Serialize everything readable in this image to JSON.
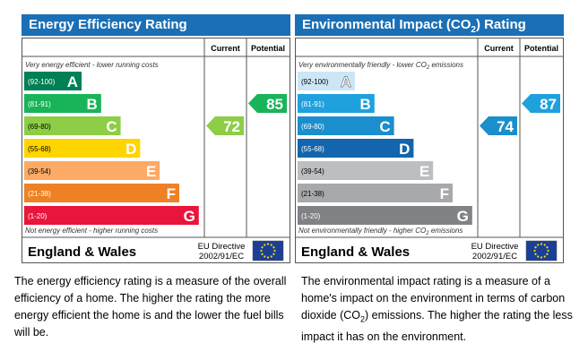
{
  "chart_data": [
    {
      "type": "bar",
      "title": "Energy Efficiency Rating",
      "header_color": "#1a6fb5",
      "columns": [
        "Current",
        "Potential"
      ],
      "top_note": "Very energy efficient - lower running costs",
      "bottom_note": "Not energy efficient - higher running costs",
      "bands": [
        {
          "range": "(92-100)",
          "letter": "A",
          "color": "#008054"
        },
        {
          "range": "(81-91)",
          "letter": "B",
          "color": "#19b459"
        },
        {
          "range": "(69-80)",
          "letter": "C",
          "color": "#8dce46"
        },
        {
          "range": "(55-68)",
          "letter": "D",
          "color": "#ffd500"
        },
        {
          "range": "(39-54)",
          "letter": "E",
          "color": "#fcaa65"
        },
        {
          "range": "(21-38)",
          "letter": "F",
          "color": "#ef8023"
        },
        {
          "range": "(1-20)",
          "letter": "G",
          "color": "#e9153b"
        }
      ],
      "current": {
        "value": 72,
        "band": "C",
        "color": "#8dce46"
      },
      "potential": {
        "value": 85,
        "band": "B",
        "color": "#19b459"
      },
      "footer_region": "England & Wales",
      "footer_directive": "EU Directive",
      "footer_code": "2002/91/EC"
    },
    {
      "type": "bar",
      "title": "Environmental Impact (CO",
      "title_sub": "2",
      "title_end": ") Rating",
      "header_color": "#1a6fb5",
      "columns": [
        "Current",
        "Potential"
      ],
      "top_note": "Very environmentally friendly - lower CO",
      "top_note_sub": "2",
      "top_note_end": " emissions",
      "bottom_note": "Not environmentally friendly - higher CO",
      "bottom_note_sub": "2",
      "bottom_note_end": " emissions",
      "bands": [
        {
          "range": "(92-100)",
          "letter": "A",
          "color": "#cde6f5"
        },
        {
          "range": "(81-91)",
          "letter": "B",
          "color": "#1fa1dd"
        },
        {
          "range": "(69-80)",
          "letter": "C",
          "color": "#1b8ecd"
        },
        {
          "range": "(55-68)",
          "letter": "D",
          "color": "#1365ad"
        },
        {
          "range": "(39-54)",
          "letter": "E",
          "color": "#bcbec0"
        },
        {
          "range": "(21-38)",
          "letter": "F",
          "color": "#a7a9ac"
        },
        {
          "range": "(1-20)",
          "letter": "G",
          "color": "#808285"
        }
      ],
      "current": {
        "value": 74,
        "band": "C",
        "color": "#1b8ecd"
      },
      "potential": {
        "value": 87,
        "band": "B",
        "color": "#1fa1dd"
      },
      "footer_region": "England & Wales",
      "footer_directive": "EU Directive",
      "footer_code": "2002/91/EC"
    }
  ],
  "descriptions": {
    "energy": "The energy efficiency rating is a measure of the overall efficiency of a home. The higher the rating the more energy efficient the home is and the lower the fuel bills will be.",
    "environment_start": "The environmental impact rating is a measure of a home's impact on the environment in terms of carbon dioxide (CO",
    "environment_sub": "2",
    "environment_end": ") emissions. The higher the rating the less impact it has on the environment."
  }
}
